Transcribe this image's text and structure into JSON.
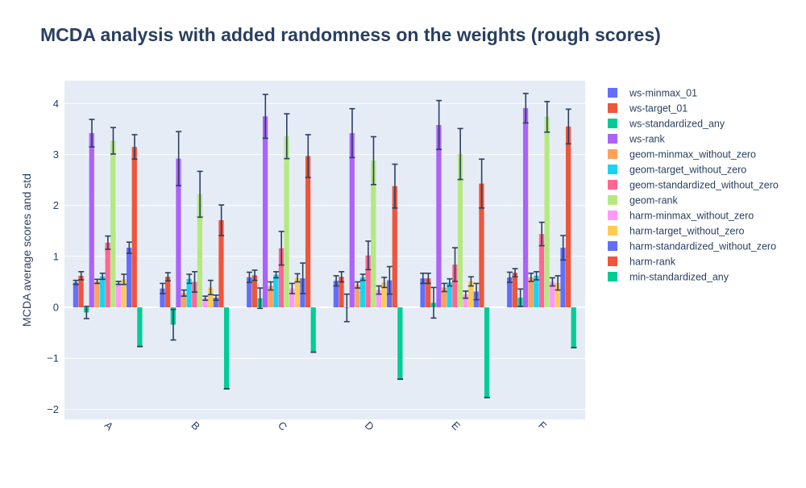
{
  "chart_data": {
    "type": "bar",
    "title": "MCDA analysis with added randomness on the weights (rough scores)",
    "ylabel": "MCDA average scores and std",
    "xlabel": "",
    "ylim": [
      -2.2,
      4.45
    ],
    "yticks": [
      -2,
      -1,
      0,
      1,
      2,
      3,
      4
    ],
    "ytick_labels": [
      "−2",
      "−1",
      "0",
      "1",
      "2",
      "3",
      "4"
    ],
    "categories": [
      "A",
      "B",
      "C",
      "D",
      "E",
      "F"
    ],
    "legend_position": "right",
    "grid": true,
    "series": [
      {
        "name": "ws-minmax_01",
        "color": "#636efa",
        "values": [
          0.49,
          0.37,
          0.59,
          0.52,
          0.57,
          0.59
        ],
        "std": [
          0.04,
          0.1,
          0.1,
          0.1,
          0.1,
          0.1
        ]
      },
      {
        "name": "ws-target_01",
        "color": "#ef553b",
        "values": [
          0.62,
          0.6,
          0.63,
          0.6,
          0.57,
          0.68
        ],
        "std": [
          0.08,
          0.08,
          0.1,
          0.1,
          0.1,
          0.08
        ]
      },
      {
        "name": "ws-standardized_any",
        "color": "#00cc96",
        "values": [
          -0.1,
          -0.34,
          0.18,
          -0.01,
          0.09,
          0.19
        ],
        "std": [
          0.12,
          0.3,
          0.2,
          0.27,
          0.3,
          0.17
        ]
      },
      {
        "name": "ws-rank",
        "color": "#ab63fa",
        "values": [
          3.42,
          2.92,
          3.75,
          3.42,
          3.58,
          3.91
        ],
        "std": [
          0.27,
          0.53,
          0.43,
          0.48,
          0.48,
          0.29
        ]
      },
      {
        "name": "geom-minmax_without_zero",
        "color": "#ffa15a",
        "values": [
          0.51,
          0.28,
          0.42,
          0.44,
          0.39,
          0.59
        ],
        "std": [
          0.04,
          0.06,
          0.08,
          0.06,
          0.08,
          0.08
        ]
      },
      {
        "name": "geom-target_without_zero",
        "color": "#19d3f3",
        "values": [
          0.61,
          0.56,
          0.64,
          0.59,
          0.49,
          0.62
        ],
        "std": [
          0.06,
          0.09,
          0.06,
          0.06,
          0.07,
          0.08
        ]
      },
      {
        "name": "geom-standardized_without_zero",
        "color": "#ff6692",
        "values": [
          1.27,
          0.5,
          1.16,
          1.02,
          0.84,
          1.44
        ],
        "std": [
          0.13,
          0.2,
          0.33,
          0.28,
          0.33,
          0.23
        ]
      },
      {
        "name": "geom-rank",
        "color": "#b6e880",
        "values": [
          3.27,
          2.22,
          3.36,
          2.88,
          3.01,
          3.74
        ],
        "std": [
          0.26,
          0.45,
          0.44,
          0.47,
          0.5,
          0.3
        ]
      },
      {
        "name": "harm-minmax_without_zero",
        "color": "#ff97ff",
        "values": [
          0.48,
          0.18,
          0.37,
          0.34,
          0.25,
          0.5
        ],
        "std": [
          0.03,
          0.04,
          0.1,
          0.08,
          0.07,
          0.08
        ]
      },
      {
        "name": "harm-target_without_zero",
        "color": "#fecb52",
        "values": [
          0.55,
          0.39,
          0.58,
          0.49,
          0.51,
          0.48
        ],
        "std": [
          0.1,
          0.14,
          0.08,
          0.1,
          0.09,
          0.14
        ]
      },
      {
        "name": "harm-standardized_without_zero",
        "color": "#636efa",
        "values": [
          1.17,
          0.19,
          0.57,
          0.53,
          0.31,
          1.17
        ],
        "std": [
          0.11,
          0.05,
          0.3,
          0.27,
          0.16,
          0.24
        ]
      },
      {
        "name": "harm-rank",
        "color": "#ef553b",
        "values": [
          3.15,
          1.71,
          2.97,
          2.38,
          2.43,
          3.55
        ],
        "std": [
          0.24,
          0.3,
          0.42,
          0.43,
          0.48,
          0.34
        ]
      },
      {
        "name": "min-standardized_any",
        "color": "#00cc96",
        "values": [
          -0.77,
          -1.6,
          -0.88,
          -1.41,
          -1.77,
          -0.79
        ],
        "std": [
          0,
          0,
          0,
          0,
          0,
          0
        ]
      }
    ]
  }
}
